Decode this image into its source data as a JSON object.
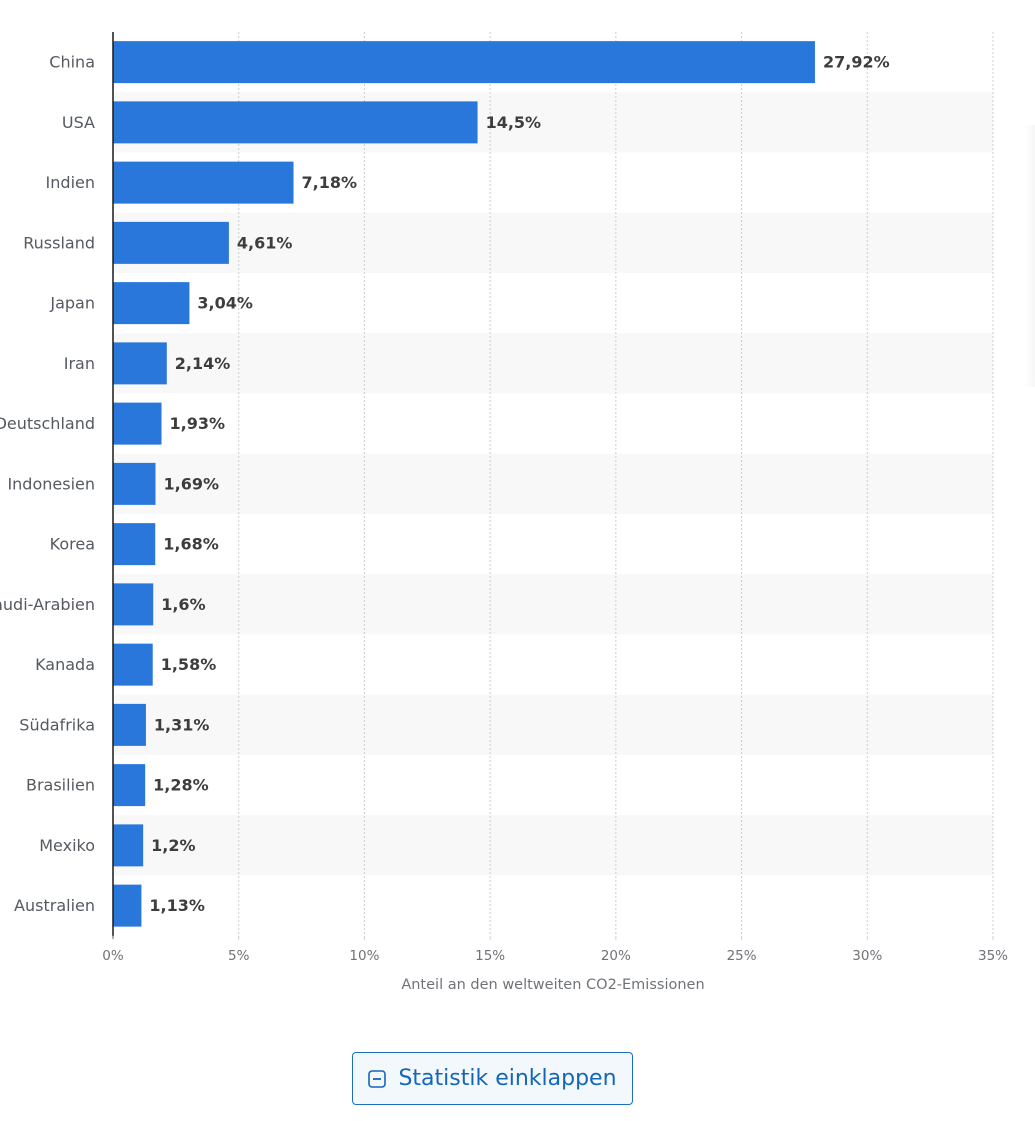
{
  "chart_data": {
    "type": "bar",
    "orientation": "horizontal",
    "categories": [
      "China",
      "USA",
      "Indien",
      "Russland",
      "Japan",
      "Iran",
      "Deutschland",
      "Indonesien",
      "Korea",
      "Saudi-Arabien",
      "Kanada",
      "Südafrika",
      "Brasilien",
      "Mexiko",
      "Australien"
    ],
    "values": [
      27.92,
      14.5,
      7.18,
      4.61,
      3.04,
      2.14,
      1.93,
      1.69,
      1.68,
      1.6,
      1.58,
      1.31,
      1.28,
      1.2,
      1.13
    ],
    "value_labels": [
      "27,92%",
      "14,5%",
      "7,18%",
      "4,61%",
      "3,04%",
      "2,14%",
      "1,93%",
      "1,69%",
      "1,68%",
      "1,6%",
      "1,58%",
      "1,31%",
      "1,28%",
      "1,2%",
      "1,13%"
    ],
    "xlim": [
      0,
      35
    ],
    "xticks": [
      0,
      5,
      10,
      15,
      20,
      25,
      30,
      35
    ],
    "xtick_labels": [
      "0%",
      "5%",
      "10%",
      "15%",
      "20%",
      "25%",
      "30%",
      "35%"
    ],
    "xlabel": "Anteil an den weltweiten CO2-Emissionen",
    "ylabel": "",
    "title": "",
    "grid": true,
    "bar_color": "#2a77dc"
  },
  "button": {
    "collapse_label": "Statistik einklappen",
    "icon": "minus-square-icon"
  },
  "colors": {
    "bar": "#2a77dc",
    "band": "#f8f8f8",
    "grid": "#c9cdd1",
    "axis": "#1a1a1a",
    "button_text": "#1466b8",
    "button_border": "#1f6fbf",
    "button_bg": "#f3f8fc"
  }
}
